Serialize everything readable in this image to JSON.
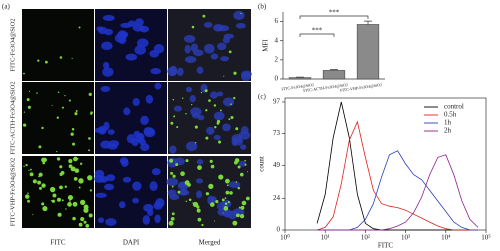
{
  "panel_a": {
    "label": "(a)",
    "row_labels": [
      "FITC-Fe3O4@SiO2",
      "FITC-ACTH-Fe3O4@SiO2",
      "FITC-VHP-Fe3O4@SiO2"
    ],
    "column_labels": [
      "FITC",
      "DAPI",
      "Merged"
    ]
  },
  "chart_data": [
    {
      "type": "bar",
      "panel_label": "(b)",
      "y_label": "MFI",
      "categories": [
        "FITC-Fe3O4@SiO2",
        "FITC-ACTH-Fe3O4@SiO2",
        "FITC-VHP-Fe3O4@SiO2"
      ],
      "values": [
        0.15,
        0.9,
        5.7
      ],
      "errors": [
        0.05,
        0.08,
        0.35
      ],
      "color": "#8a8a8a",
      "annotations": [
        "***",
        "***"
      ],
      "ylim": [
        0,
        7
      ],
      "yticks": [
        0,
        2,
        4,
        6
      ]
    },
    {
      "type": "line",
      "panel_label": "(c)",
      "x_label": "FITC",
      "y_label": "count",
      "log_x": true,
      "x": [
        6.3,
        10,
        15.8,
        25.1,
        39.8,
        63.1,
        100,
        158,
        251,
        398,
        631,
        1000,
        1585,
        2512,
        3981,
        6310,
        10000,
        15849,
        25119,
        39811,
        63096
      ],
      "series": [
        {
          "name": "control",
          "color": "#000000",
          "values": [
            5,
            27,
            70,
            97,
            70,
            27,
            5,
            1,
            0,
            0,
            0,
            0,
            0,
            0,
            0,
            0,
            0,
            0,
            0,
            0,
            0
          ]
        },
        {
          "name": "0.5h",
          "color": "#e0201b",
          "values": [
            0,
            2,
            10,
            35,
            68,
            82,
            55,
            30,
            20,
            18,
            17,
            15,
            12,
            9,
            6,
            3,
            1,
            0,
            0,
            0,
            0
          ]
        },
        {
          "name": "1h",
          "color": "#2b3fb8",
          "values": [
            0,
            0,
            0,
            0,
            0,
            2,
            8,
            20,
            40,
            57,
            60,
            50,
            42,
            38,
            30,
            22,
            14,
            6,
            2,
            0,
            0
          ]
        },
        {
          "name": "2h",
          "color": "#8e1f8c",
          "values": [
            0,
            0,
            0,
            0,
            0,
            0,
            0,
            0,
            0,
            1,
            3,
            6,
            13,
            25,
            42,
            55,
            57,
            42,
            22,
            8,
            2
          ]
        }
      ],
      "xlim": [
        1,
        100000
      ],
      "xticks": [
        {
          "value": 1,
          "label": "10⁰"
        },
        {
          "value": 10,
          "label": "10¹"
        },
        {
          "value": 100,
          "label": "10²"
        },
        {
          "value": 1000,
          "label": "10³"
        },
        {
          "value": 10000,
          "label": "10⁴"
        },
        {
          "value": 100000,
          "label": "10⁵"
        }
      ],
      "ylim": [
        0,
        100
      ],
      "yticks": [
        0,
        24,
        49,
        73,
        97
      ],
      "legend": "top-right"
    }
  ]
}
